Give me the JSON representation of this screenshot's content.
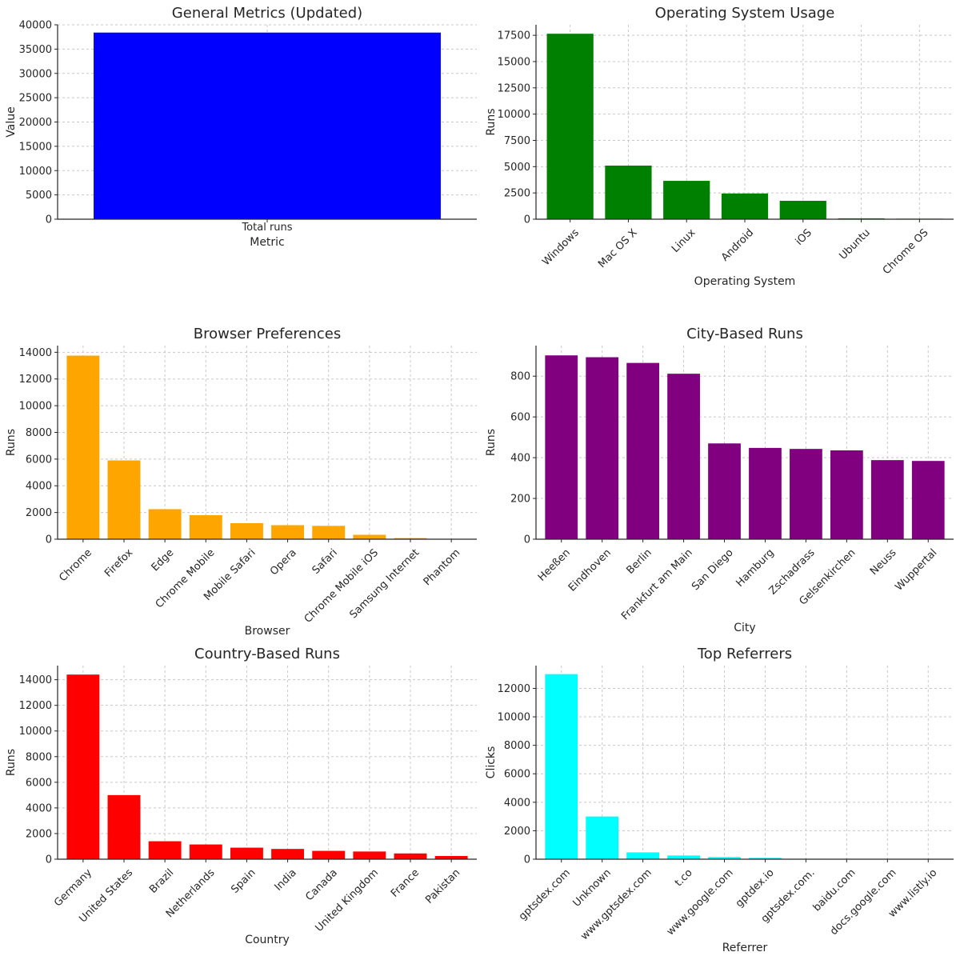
{
  "chart_data": [
    {
      "id": "general",
      "type": "bar",
      "title": "General Metrics (Updated)",
      "xlabel": "Metric",
      "ylabel": "Value",
      "color": "#0000ff",
      "categories": [
        "Total runs"
      ],
      "values": [
        38400
      ],
      "ylim": [
        0,
        40000
      ],
      "yticks": [
        0,
        5000,
        10000,
        15000,
        20000,
        25000,
        30000,
        35000,
        40000
      ],
      "rotate": false
    },
    {
      "id": "os",
      "type": "bar",
      "title": "Operating System Usage",
      "xlabel": "Operating System",
      "ylabel": "Runs",
      "color": "#008000",
      "categories": [
        "Windows",
        "Mac OS X",
        "Linux",
        "Android",
        "iOS",
        "Ubuntu",
        "Chrome OS"
      ],
      "values": [
        17650,
        5100,
        3650,
        2450,
        1750,
        80,
        50
      ],
      "ylim": [
        0,
        18500
      ],
      "yticks": [
        0,
        2500,
        5000,
        7500,
        10000,
        12500,
        15000,
        17500
      ],
      "rotate": true
    },
    {
      "id": "browser",
      "type": "bar",
      "title": "Browser Preferences",
      "xlabel": "Browser",
      "ylabel": "Runs",
      "color": "#ffa500",
      "categories": [
        "Chrome",
        "Firefox",
        "Edge",
        "Chrome Mobile",
        "Mobile Safari",
        "Opera",
        "Safari",
        "Chrome Mobile iOS",
        "Samsung Internet",
        "Phantom"
      ],
      "values": [
        13750,
        5900,
        2250,
        1800,
        1200,
        1050,
        1000,
        330,
        80,
        20
      ],
      "ylim": [
        0,
        14500
      ],
      "yticks": [
        0,
        2000,
        4000,
        6000,
        8000,
        10000,
        12000,
        14000
      ],
      "rotate": true
    },
    {
      "id": "city",
      "type": "bar",
      "title": "City-Based Runs",
      "xlabel": "City",
      "ylabel": "Runs",
      "color": "#800080",
      "categories": [
        "Heeßen",
        "Eindhoven",
        "Berlin",
        "Frankfurt am Main",
        "San Diego",
        "Hamburg",
        "Zschadrass",
        "Gelsenkirchen",
        "Neuss",
        "Wuppertal"
      ],
      "values": [
        902,
        893,
        865,
        812,
        470,
        448,
        443,
        436,
        388,
        384
      ],
      "ylim": [
        0,
        950
      ],
      "yticks": [
        0,
        200,
        400,
        600,
        800
      ],
      "rotate": true
    },
    {
      "id": "country",
      "type": "bar",
      "title": "Country-Based Runs",
      "xlabel": "Country",
      "ylabel": "Runs",
      "color": "#ff0000",
      "categories": [
        "Germany",
        "United States",
        "Brazil",
        "Netherlands",
        "Spain",
        "India",
        "Canada",
        "United Kingdom",
        "France",
        "Pakistan"
      ],
      "values": [
        14400,
        5000,
        1400,
        1150,
        900,
        800,
        650,
        600,
        450,
        250
      ],
      "ylim": [
        0,
        15100
      ],
      "yticks": [
        0,
        2000,
        4000,
        6000,
        8000,
        10000,
        12000,
        14000
      ],
      "rotate": true
    },
    {
      "id": "referrer",
      "type": "bar",
      "title": "Top Referrers",
      "xlabel": "Referrer",
      "ylabel": "Clicks",
      "color": "#00ffff",
      "categories": [
        "gptsdex.com",
        "Unknown",
        "www.gptsdex.com",
        "t.co",
        "www.google.com",
        "gptdex.io",
        "gptsdex.com.",
        "baidu.com",
        "docs.google.com",
        "www.listly.io"
      ],
      "values": [
        13000,
        3000,
        480,
        260,
        150,
        90,
        30,
        20,
        15,
        10
      ],
      "ylim": [
        0,
        13600
      ],
      "yticks": [
        0,
        2000,
        4000,
        6000,
        8000,
        10000,
        12000
      ],
      "rotate": true
    }
  ]
}
